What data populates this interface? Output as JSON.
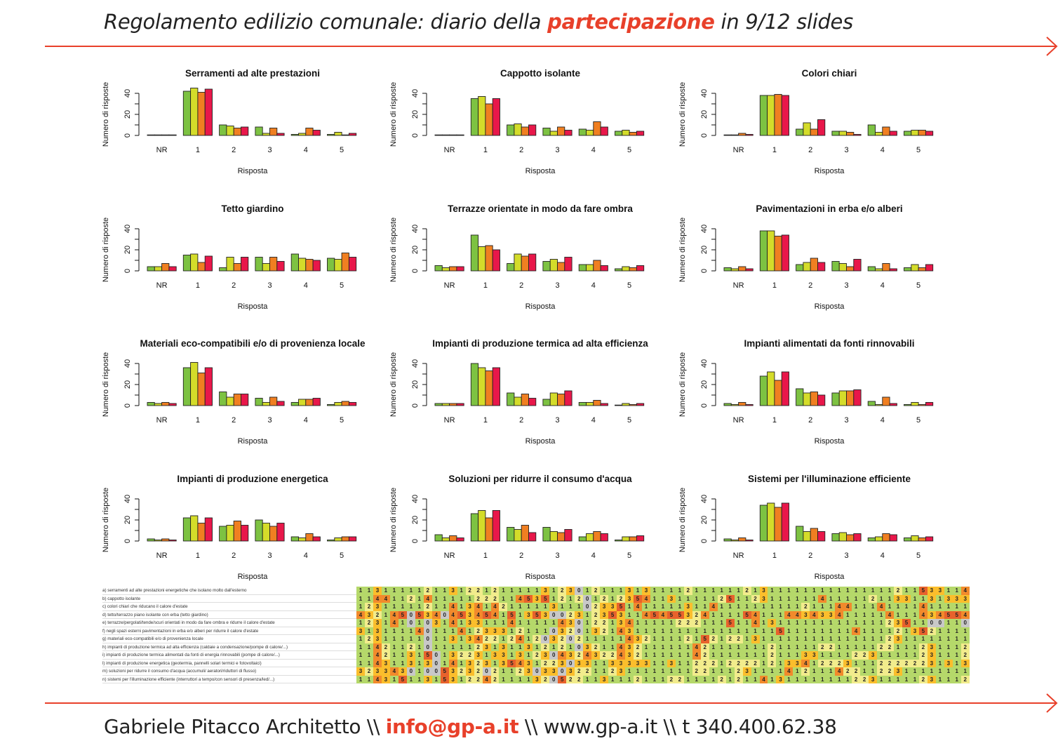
{
  "header": {
    "title_before": "Regolamento edilizio comunale: diario della ",
    "title_accent": "partecipazione",
    "title_after": " in 9/12 slides"
  },
  "footer": {
    "name": "Gabriele Pitacco Architetto \\\\ ",
    "email": "info@gp-a.it",
    "rest": " \\\\ www.gp-a.it \\\\ t 340.400.62.38"
  },
  "colors": {
    "accent": "#e8402a",
    "series": [
      "#7dc242",
      "#d4dc2a",
      "#f07f21",
      "#e8174a"
    ],
    "heat": {
      "0": "#c8c8c8",
      "1": "#b5d86a",
      "2": "#f2ec8c",
      "3": "#fbbe2c",
      "4": "#f28a2c",
      "5": "#e8622c"
    }
  },
  "chart_data": [
    {
      "type": "bar",
      "title": "Serramenti ad alte prestazioni",
      "xlabel": "Risposta",
      "ylabel": "Numero di risposte",
      "ylim": [
        0,
        45
      ],
      "yticks": [
        0,
        20,
        40
      ],
      "categories": [
        "NR",
        "1",
        "2",
        "3",
        "4",
        "5"
      ],
      "series": [
        {
          "name": "s1",
          "values": [
            0,
            42,
            10,
            8,
            1,
            1
          ]
        },
        {
          "name": "s2",
          "values": [
            0,
            45,
            9,
            2,
            2,
            3
          ]
        },
        {
          "name": "s3",
          "values": [
            0,
            41,
            7,
            7,
            7,
            0
          ]
        },
        {
          "name": "s4",
          "values": [
            0,
            44,
            8,
            2,
            5,
            2
          ]
        }
      ]
    },
    {
      "type": "bar",
      "title": "Cappotto isolante",
      "xlabel": "Risposta",
      "ylabel": "Numero di risposte",
      "ylim": [
        0,
        45
      ],
      "yticks": [
        0,
        20,
        40
      ],
      "categories": [
        "NR",
        "1",
        "2",
        "3",
        "4",
        "5"
      ],
      "series": [
        {
          "name": "s1",
          "values": [
            0,
            35,
            10,
            7,
            6,
            4
          ]
        },
        {
          "name": "s2",
          "values": [
            0,
            37,
            11,
            4,
            5,
            5
          ]
        },
        {
          "name": "s3",
          "values": [
            0,
            30,
            8,
            8,
            13,
            3
          ]
        },
        {
          "name": "s4",
          "values": [
            0,
            35,
            10,
            5,
            8,
            4
          ]
        }
      ]
    },
    {
      "type": "bar",
      "title": "Colori chiari",
      "xlabel": "Risposta",
      "ylabel": "Numero di risposte",
      "ylim": [
        0,
        45
      ],
      "yticks": [
        0,
        20,
        40
      ],
      "categories": [
        "NR",
        "1",
        "2",
        "3",
        "4",
        "5"
      ],
      "series": [
        {
          "name": "s1",
          "values": [
            0,
            38,
            6,
            4,
            10,
            4
          ]
        },
        {
          "name": "s2",
          "values": [
            0,
            38,
            12,
            4,
            3,
            5
          ]
        },
        {
          "name": "s3",
          "values": [
            2,
            39,
            6,
            3,
            8,
            5
          ]
        },
        {
          "name": "s4",
          "values": [
            1,
            38,
            15,
            1,
            4,
            4
          ]
        }
      ]
    },
    {
      "type": "bar",
      "title": "Tetto giardino",
      "xlabel": "Risposta",
      "ylabel": "Numero di risposte",
      "ylim": [
        0,
        45
      ],
      "yticks": [
        0,
        20,
        40
      ],
      "categories": [
        "NR",
        "1",
        "2",
        "3",
        "4",
        "5"
      ],
      "series": [
        {
          "name": "s1",
          "values": [
            4,
            15,
            3,
            13,
            16,
            12
          ]
        },
        {
          "name": "s2",
          "values": [
            4,
            16,
            13,
            7,
            12,
            11
          ]
        },
        {
          "name": "s3",
          "values": [
            7,
            8,
            7,
            13,
            11,
            17
          ]
        },
        {
          "name": "s4",
          "values": [
            4,
            14,
            13,
            9,
            10,
            13
          ]
        }
      ]
    },
    {
      "type": "bar",
      "title": "Terrazze orientate in modo da fare ombra",
      "xlabel": "Risposta",
      "ylabel": "Numero di risposte",
      "ylim": [
        0,
        45
      ],
      "yticks": [
        0,
        20,
        40
      ],
      "categories": [
        "NR",
        "1",
        "2",
        "3",
        "4",
        "5"
      ],
      "series": [
        {
          "name": "s1",
          "values": [
            5,
            34,
            7,
            9,
            6,
            2
          ]
        },
        {
          "name": "s2",
          "values": [
            3,
            23,
            16,
            11,
            6,
            4
          ]
        },
        {
          "name": "s3",
          "values": [
            4,
            24,
            14,
            8,
            10,
            3
          ]
        },
        {
          "name": "s4",
          "values": [
            4,
            20,
            16,
            13,
            5,
            5
          ]
        }
      ]
    },
    {
      "type": "bar",
      "title": "Pavimentazioni in erba e/o alberi",
      "xlabel": "Risposta",
      "ylabel": "Numero di risposte",
      "ylim": [
        0,
        45
      ],
      "yticks": [
        0,
        20,
        40
      ],
      "categories": [
        "NR",
        "1",
        "2",
        "3",
        "4",
        "5"
      ],
      "series": [
        {
          "name": "s1",
          "values": [
            3,
            38,
            6,
            9,
            4,
            3
          ]
        },
        {
          "name": "s2",
          "values": [
            2,
            38,
            8,
            7,
            2,
            6
          ]
        },
        {
          "name": "s3",
          "values": [
            4,
            33,
            12,
            4,
            7,
            3
          ]
        },
        {
          "name": "s4",
          "values": [
            2,
            34,
            8,
            11,
            2,
            6
          ]
        }
      ]
    },
    {
      "type": "bar",
      "title": "Materiali eco-compatibili e/o di provenienza locale",
      "xlabel": "Risposta",
      "ylabel": "Numero di risposte",
      "ylim": [
        0,
        45
      ],
      "yticks": [
        0,
        20,
        40
      ],
      "categories": [
        "NR",
        "1",
        "2",
        "3",
        "4",
        "5"
      ],
      "series": [
        {
          "name": "s1",
          "values": [
            3,
            36,
            13,
            7,
            3,
            1
          ]
        },
        {
          "name": "s2",
          "values": [
            2,
            41,
            8,
            3,
            6,
            3
          ]
        },
        {
          "name": "s3",
          "values": [
            3,
            31,
            11,
            8,
            6,
            4
          ]
        },
        {
          "name": "s4",
          "values": [
            2,
            36,
            11,
            4,
            7,
            3
          ]
        }
      ]
    },
    {
      "type": "bar",
      "title": "Impianti di produzione termica ad alta efficienza",
      "xlabel": "Risposta",
      "ylabel": "Numero di risposte",
      "ylim": [
        0,
        45
      ],
      "yticks": [
        0,
        20,
        40
      ],
      "categories": [
        "NR",
        "1",
        "2",
        "3",
        "4",
        "5"
      ],
      "series": [
        {
          "name": "s1",
          "values": [
            2,
            40,
            12,
            6,
            3,
            0
          ]
        },
        {
          "name": "s2",
          "values": [
            2,
            36,
            8,
            12,
            3,
            2
          ]
        },
        {
          "name": "s3",
          "values": [
            2,
            33,
            11,
            11,
            5,
            1
          ]
        },
        {
          "name": "s4",
          "values": [
            2,
            36,
            7,
            14,
            2,
            2
          ]
        }
      ]
    },
    {
      "type": "bar",
      "title": "Impianti alimentati da fonti rinnovabili",
      "xlabel": "Risposta",
      "ylabel": "Numero di risposte",
      "ylim": [
        0,
        45
      ],
      "yticks": [
        0,
        20,
        40
      ],
      "categories": [
        "NR",
        "1",
        "2",
        "3",
        "4",
        "5"
      ],
      "series": [
        {
          "name": "s1",
          "values": [
            2,
            28,
            16,
            12,
            4,
            1
          ]
        },
        {
          "name": "s2",
          "values": [
            1,
            32,
            12,
            14,
            1,
            3
          ]
        },
        {
          "name": "s3",
          "values": [
            3,
            24,
            13,
            14,
            8,
            1
          ]
        },
        {
          "name": "s4",
          "values": [
            1,
            32,
            10,
            15,
            2,
            3
          ]
        }
      ]
    },
    {
      "type": "bar",
      "title": "Impianti di produzione energetica",
      "xlabel": "Risposta",
      "ylabel": "Numero di risposte",
      "ylim": [
        0,
        45
      ],
      "yticks": [
        0,
        20,
        40
      ],
      "categories": [
        "NR",
        "1",
        "2",
        "3",
        "4",
        "5"
      ],
      "series": [
        {
          "name": "s1",
          "values": [
            2,
            22,
            14,
            20,
            4,
            1
          ]
        },
        {
          "name": "s2",
          "values": [
            1,
            24,
            15,
            17,
            3,
            3
          ]
        },
        {
          "name": "s3",
          "values": [
            2,
            17,
            19,
            14,
            7,
            4
          ]
        },
        {
          "name": "s4",
          "values": [
            1,
            22,
            15,
            17,
            4,
            4
          ]
        }
      ]
    },
    {
      "type": "bar",
      "title": "Soluzioni per ridurre il consumo d'acqua",
      "xlabel": "Risposta",
      "ylabel": "Numero di risposte",
      "ylim": [
        0,
        45
      ],
      "yticks": [
        0,
        20,
        40
      ],
      "categories": [
        "NR",
        "1",
        "2",
        "3",
        "4",
        "5"
      ],
      "series": [
        {
          "name": "s1",
          "values": [
            6,
            26,
            13,
            13,
            4,
            1
          ]
        },
        {
          "name": "s2",
          "values": [
            3,
            29,
            11,
            9,
            7,
            4
          ]
        },
        {
          "name": "s3",
          "values": [
            5,
            22,
            15,
            8,
            9,
            4
          ]
        },
        {
          "name": "s4",
          "values": [
            3,
            29,
            8,
            11,
            7,
            5
          ]
        }
      ]
    },
    {
      "type": "bar",
      "title": "Sistemi per l'illuminazione efficiente",
      "xlabel": "Risposta",
      "ylabel": "Numero di risposte",
      "ylim": [
        0,
        45
      ],
      "yticks": [
        0,
        20,
        40
      ],
      "categories": [
        "NR",
        "1",
        "2",
        "3",
        "4",
        "5"
      ],
      "series": [
        {
          "name": "s1",
          "values": [
            2,
            34,
            14,
            7,
            3,
            3
          ]
        },
        {
          "name": "s2",
          "values": [
            1,
            36,
            9,
            8,
            4,
            5
          ]
        },
        {
          "name": "s3",
          "values": [
            3,
            32,
            12,
            6,
            7,
            3
          ]
        },
        {
          "name": "s4",
          "values": [
            1,
            36,
            9,
            7,
            6,
            4
          ]
        }
      ]
    }
  ],
  "heatmap": {
    "labels": [
      "a) serramenti ad alte prestazioni energetiche che isolano molto dall'esterno",
      "b) cappotto isolante",
      "c) colori chiari che riducano il calore d'estate",
      "d) tetto/terrazzo piano isolante con erba (tetto giardino)",
      "e) terrazze/pergolati/tende/scuri orientati in modo da fare ombra e ridurre il calore d'estate",
      "f) negli spazi esterni pavimentazioni in erba e/o alberi per ridurre il calore d'estate",
      "g) materiali eco-compatibili e/o di provenienza locale",
      "h) impianti di produzione termica ad alta efficienza (caldaie a condensazione/pompe di calore/...)",
      "i) impianti di produzione termica alimentati da fonti di energia rinnovabili (pompe di calore/...)",
      "l) impianti di produzione energetica (geotermia, pannelli solari termici e fotovoltaici)",
      "m) soluzioni per ridurre il consumo d'acqua (accumuli/ aeratori/riduttori di flusso)",
      "n) sistemi per l'illuminazione efficiente (interruttori a tempo/con sensori di presenza/led/...)"
    ],
    "rows": [
      "1131111121131221211111312301211131311112111111213111111111111111211533114",
      "1144112141111122211453512120121235411311111251123111111411111211331131333",
      "1231111121141341421111131110233514111113114111111111121114411141111411111",
      "4321450534045345415135300231235311454553241111541114434334111114111434554353",
      "1231410103141331114111114301221341111122211151141311111111111112351100110",
      "3131111401114123331211103201321431111111111111111151111111141111213521",
      "1231111101131342212412032021111143211112152122131111111111111112311111",
      "1142112101111123131131212103211432111111421111111211111221111122111231112",
      "1142113150132231331312304324322432111111421111111211133111122311111231112",
      "1143113130141323135431223033113333311311222122221213341222311122222231313",
      "3233430100532320211230330322112311111111221112311114121114221122311111",
      "1143151131531224211113205221131112111221111212114131111111122311111231112"
    ]
  }
}
